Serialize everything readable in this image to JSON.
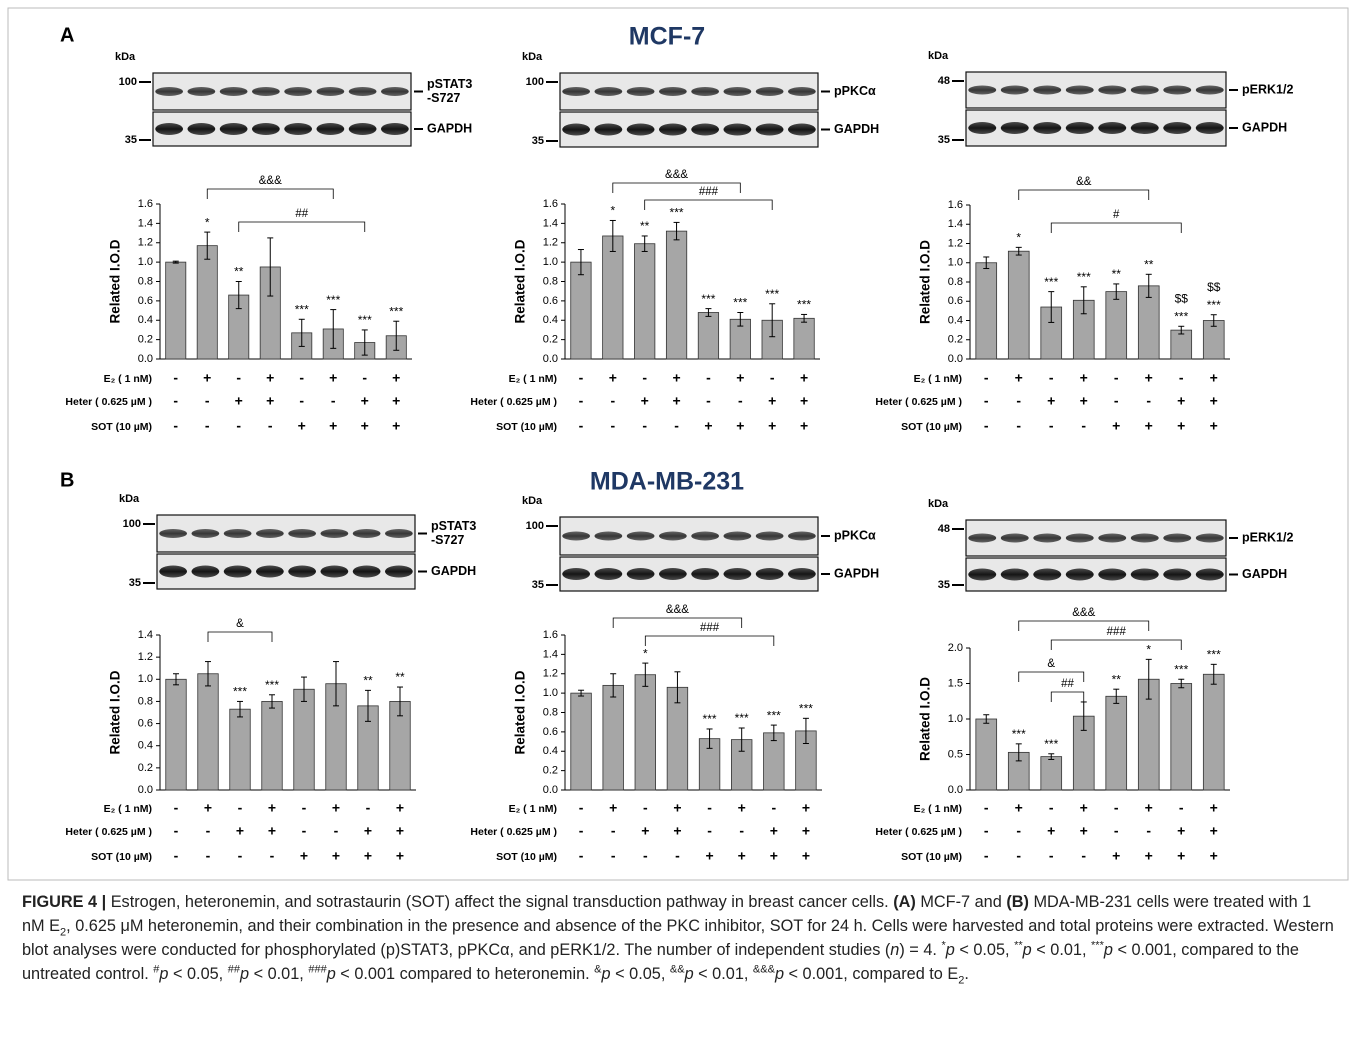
{
  "panels": [
    {
      "letter": "A",
      "title": "MCF-7"
    },
    {
      "letter": "B",
      "title": "MDA-MB-231"
    }
  ],
  "chart_data": [
    {
      "type": "bar",
      "ylabel": "Related I.O.D",
      "color": "#a6a6a6",
      "ylim": [
        0,
        1.6
      ],
      "yticks": [
        {
          "value": 0,
          "label": "0.0"
        },
        0.2,
        0.4,
        0.6,
        0.8,
        {
          "value": 1,
          "label": "1.0"
        },
        1.2,
        1.4,
        1.6
      ],
      "values": [
        1.0,
        1.17,
        0.66,
        0.95,
        0.27,
        0.31,
        0.17,
        0.24
      ],
      "errors": [
        0.01,
        0.14,
        0.14,
        0.3,
        0.14,
        0.2,
        0.13,
        0.15
      ],
      "annotations": [
        null,
        "*",
        "**",
        null,
        "***",
        "***",
        "***",
        "***"
      ],
      "brackets": [
        {
          "label": "&&&",
          "from": 1,
          "to": 5
        },
        {
          "label": "##",
          "from": 2,
          "to": 6
        }
      ],
      "conditions": [
        {
          "label": "E₂ ( 1 nM)",
          "signs": [
            "-",
            "+",
            "-",
            "+",
            "-",
            "+",
            "-",
            "+"
          ]
        },
        {
          "label": "Heter ( 0.625 µM )",
          "signs": [
            "-",
            "-",
            "+",
            "+",
            "-",
            "-",
            "+",
            "+"
          ]
        },
        {
          "label": "SOT (10 µM)",
          "signs": [
            "-",
            "-",
            "-",
            "-",
            "+",
            "+",
            "+",
            "+"
          ]
        }
      ],
      "blot": {
        "kda": "kDa",
        "markers": [
          "100",
          "35"
        ],
        "bands": [
          [
            "pSTAT3",
            "-S727"
          ],
          [
            "GAPDH"
          ]
        ]
      }
    },
    {
      "type": "bar",
      "ylabel": "Related I.O.D",
      "color": "#a6a6a6",
      "ylim": [
        0,
        1.6
      ],
      "yticks": [
        {
          "value": 0,
          "label": "0.0"
        },
        0.2,
        0.4,
        0.6,
        0.8,
        {
          "value": 1,
          "label": "1.0"
        },
        1.2,
        1.4,
        1.6
      ],
      "values": [
        1.0,
        1.27,
        1.19,
        1.32,
        0.48,
        0.41,
        0.4,
        0.42
      ],
      "errors": [
        0.13,
        0.16,
        0.08,
        0.09,
        0.04,
        0.07,
        0.17,
        0.04
      ],
      "annotations": [
        null,
        "*",
        "**",
        "***",
        "***",
        "***",
        "***",
        "***"
      ],
      "brackets": [
        {
          "label": "&&&",
          "from": 1,
          "to": 5
        },
        {
          "label": "###",
          "from": 2,
          "to": 6
        }
      ],
      "conditions": [
        {
          "label": "E₂ ( 1 nM)",
          "signs": [
            "-",
            "+",
            "-",
            "+",
            "-",
            "+",
            "-",
            "+"
          ]
        },
        {
          "label": "Heter ( 0.625 µM )",
          "signs": [
            "-",
            "-",
            "+",
            "+",
            "-",
            "-",
            "+",
            "+"
          ]
        },
        {
          "label": "SOT (10 µM)",
          "signs": [
            "-",
            "-",
            "-",
            "-",
            "+",
            "+",
            "+",
            "+"
          ]
        }
      ],
      "blot": {
        "kda": "kDa",
        "markers": [
          "100",
          "35"
        ],
        "bands": [
          [
            "pPKCα"
          ],
          [
            "GAPDH"
          ]
        ]
      }
    },
    {
      "type": "bar",
      "ylabel": "Related I.O.D",
      "color": "#a6a6a6",
      "ylim": [
        0,
        1.6
      ],
      "yticks": [
        {
          "value": 0,
          "label": "0.0"
        },
        0.2,
        0.4,
        0.6,
        0.8,
        {
          "value": 1,
          "label": "1.0"
        },
        1.2,
        1.4,
        1.6
      ],
      "values": [
        1.0,
        1.12,
        0.54,
        0.61,
        0.7,
        0.76,
        0.3,
        0.4
      ],
      "errors": [
        0.06,
        0.04,
        0.16,
        0.14,
        0.08,
        0.12,
        0.04,
        0.06
      ],
      "annotations": [
        null,
        "*",
        "***",
        "***",
        "**",
        "**",
        "***",
        "***"
      ],
      "annotations_top": [
        null,
        null,
        null,
        null,
        null,
        null,
        "$$",
        "$$"
      ],
      "brackets": [
        {
          "label": "&&",
          "from": 1,
          "to": 5
        },
        {
          "label": "#",
          "from": 2,
          "to": 6
        }
      ],
      "conditions": [
        {
          "label": "E₂ ( 1 nM)",
          "signs": [
            "-",
            "+",
            "-",
            "+",
            "-",
            "+",
            "-",
            "+"
          ]
        },
        {
          "label": "Heter ( 0.625 µM )",
          "signs": [
            "-",
            "-",
            "+",
            "+",
            "-",
            "-",
            "+",
            "+"
          ]
        },
        {
          "label": "SOT (10 µM)",
          "signs": [
            "-",
            "-",
            "-",
            "-",
            "+",
            "+",
            "+",
            "+"
          ]
        }
      ],
      "blot": {
        "kda": "kDa",
        "markers": [
          "48",
          "35"
        ],
        "bands": [
          [
            "pERK1/2"
          ],
          [
            "GAPDH"
          ]
        ]
      }
    },
    {
      "type": "bar",
      "ylabel": "Related I.O.D",
      "color": "#a6a6a6",
      "ylim": [
        0,
        1.4
      ],
      "yticks": [
        {
          "value": 0,
          "label": "0.0"
        },
        0.2,
        0.4,
        0.6,
        0.8,
        {
          "value": 1,
          "label": "1.0"
        },
        1.2,
        1.4
      ],
      "values": [
        1.0,
        1.05,
        0.73,
        0.8,
        0.91,
        0.96,
        0.76,
        0.8
      ],
      "errors": [
        0.05,
        0.11,
        0.07,
        0.06,
        0.11,
        0.2,
        0.14,
        0.13
      ],
      "annotations": [
        null,
        null,
        "***",
        "***",
        null,
        null,
        "**",
        "**"
      ],
      "brackets": [
        {
          "label": "&",
          "from": 1,
          "to": 3
        }
      ],
      "conditions": [
        {
          "label": "E₂ ( 1 nM)",
          "signs": [
            "-",
            "+",
            "-",
            "+",
            "-",
            "+",
            "-",
            "+"
          ]
        },
        {
          "label": "Heter ( 0.625  µM )",
          "signs": [
            "-",
            "-",
            "+",
            "+",
            "-",
            "-",
            "+",
            "+"
          ]
        },
        {
          "label": "SOT (10 µM)",
          "signs": [
            "-",
            "-",
            "-",
            "-",
            "+",
            "+",
            "+",
            "+"
          ]
        }
      ],
      "blot": {
        "kda": "kDa",
        "markers": [
          "100",
          "35"
        ],
        "bands": [
          [
            "pSTAT3",
            "-S727"
          ],
          [
            "GAPDH"
          ]
        ]
      }
    },
    {
      "type": "bar",
      "ylabel": "Related I.O.D",
      "color": "#a6a6a6",
      "ylim": [
        0,
        1.6
      ],
      "yticks": [
        {
          "value": 0,
          "label": "0.0"
        },
        0.2,
        0.4,
        0.6,
        0.8,
        {
          "value": 1,
          "label": "1.0"
        },
        1.2,
        1.4,
        1.6
      ],
      "values": [
        1.0,
        1.08,
        1.19,
        1.06,
        0.53,
        0.52,
        0.59,
        0.61
      ],
      "errors": [
        0.03,
        0.12,
        0.12,
        0.16,
        0.1,
        0.12,
        0.08,
        0.13
      ],
      "annotations": [
        null,
        null,
        "*",
        null,
        "***",
        "***",
        "***",
        "***"
      ],
      "brackets": [
        {
          "label": "&&&",
          "from": 1,
          "to": 5
        },
        {
          "label": "###",
          "from": 2,
          "to": 6
        }
      ],
      "conditions": [
        {
          "label": "E₂ ( 1 nM)",
          "signs": [
            "-",
            "+",
            "-",
            "+",
            "-",
            "+",
            "-",
            "+"
          ]
        },
        {
          "label": "Heter ( 0.625  µM )",
          "signs": [
            "-",
            "-",
            "+",
            "+",
            "-",
            "-",
            "+",
            "+"
          ]
        },
        {
          "label": "SOT (10 µM)",
          "signs": [
            "-",
            "-",
            "-",
            "-",
            "+",
            "+",
            "+",
            "+"
          ]
        }
      ],
      "blot": {
        "kda": "kDa",
        "markers": [
          "100",
          "35"
        ],
        "bands": [
          [
            "pPKCα"
          ],
          [
            "GAPDH"
          ]
        ]
      }
    },
    {
      "type": "bar",
      "ylabel": "Related I.O.D",
      "color": "#a6a6a6",
      "ylim": [
        0,
        2.0
      ],
      "yticks": [
        {
          "value": 0,
          "label": "0.0"
        },
        0.5,
        {
          "value": 1,
          "label": "1.0"
        },
        1.5,
        {
          "value": 2,
          "label": "2.0"
        }
      ],
      "values": [
        1.0,
        0.53,
        0.47,
        1.04,
        1.32,
        1.56,
        1.5,
        1.63
      ],
      "errors": [
        0.06,
        0.12,
        0.04,
        0.2,
        0.1,
        0.28,
        0.06,
        0.14
      ],
      "annotations": [
        null,
        "***",
        "***",
        null,
        "**",
        "*",
        "***",
        "***"
      ],
      "brackets": [
        {
          "label": "&&&",
          "from": 1,
          "to": 5
        },
        {
          "label": "###",
          "from": 2,
          "to": 6
        },
        {
          "label": "&",
          "from": 1,
          "to": 3
        },
        {
          "label": "##",
          "from": 2,
          "to": 3
        }
      ],
      "conditions": [
        {
          "label": "E₂ ( 1 nM)",
          "signs": [
            "-",
            "+",
            "-",
            "+",
            "-",
            "+",
            "-",
            "+"
          ]
        },
        {
          "label": "Heter ( 0.625  µM )",
          "signs": [
            "-",
            "-",
            "+",
            "+",
            "-",
            "-",
            "+",
            "+"
          ]
        },
        {
          "label": "SOT (10 µM)",
          "signs": [
            "-",
            "-",
            "-",
            "-",
            "+",
            "+",
            "+",
            "+"
          ]
        }
      ],
      "blot": {
        "kda": "kDa",
        "markers": [
          "48",
          "35"
        ],
        "bands": [
          [
            "pERK1/2"
          ],
          [
            "GAPDH"
          ]
        ]
      }
    }
  ],
  "caption": [
    {
      "text": "FIGURE 4 |",
      "style": "b"
    },
    {
      "text": " Estrogen, heteronemin, and sotrastaurin (SOT) affect the signal transduction pathway in breast cancer cells. "
    },
    {
      "text": "(A)",
      "style": "b"
    },
    {
      "text": " MCF-7 and "
    },
    {
      "text": "(B)",
      "style": "b"
    },
    {
      "text": " MDA-MB-231 cells were treated with 1 nM E"
    },
    {
      "text": "2",
      "style": "sub"
    },
    {
      "text": ", 0.625 μM heteronemin, and their combination in the presence and absence of the PKC inhibitor, SOT for 24 h. Cells were harvested and total proteins were extracted. Western blot analyses were conducted for phosphorylated (p)STAT3, pPKCα, and pERK1/2. The number of independent studies ("
    },
    {
      "text": "n",
      "style": "i"
    },
    {
      "text": ") = 4. "
    },
    {
      "text": "*",
      "style": "sup"
    },
    {
      "text": "p",
      "style": "i"
    },
    {
      "text": " < 0.05, "
    },
    {
      "text": "**",
      "style": "sup"
    },
    {
      "text": "p",
      "style": "i"
    },
    {
      "text": " < 0.01, "
    },
    {
      "text": "***",
      "style": "sup"
    },
    {
      "text": "p",
      "style": "i"
    },
    {
      "text": " < 0.001, compared to the untreated control. "
    },
    {
      "text": "#",
      "style": "sup"
    },
    {
      "text": "p",
      "style": "i"
    },
    {
      "text": " < 0.05, "
    },
    {
      "text": "##",
      "style": "sup"
    },
    {
      "text": "p",
      "style": "i"
    },
    {
      "text": " < 0.01, "
    },
    {
      "text": "###",
      "style": "sup"
    },
    {
      "text": "p",
      "style": "i"
    },
    {
      "text": " < 0.001 compared to heteronemin. "
    },
    {
      "text": "&",
      "style": "sup"
    },
    {
      "text": "p",
      "style": "i"
    },
    {
      "text": " < 0.05, "
    },
    {
      "text": "&&",
      "style": "sup"
    },
    {
      "text": "p",
      "style": "i"
    },
    {
      "text": " < 0.01, "
    },
    {
      "text": "&&&",
      "style": "sup"
    },
    {
      "text": "p",
      "style": "i"
    },
    {
      "text": " < 0.001, compared to E"
    },
    {
      "text": "2",
      "style": "sub"
    },
    {
      "text": "."
    }
  ]
}
